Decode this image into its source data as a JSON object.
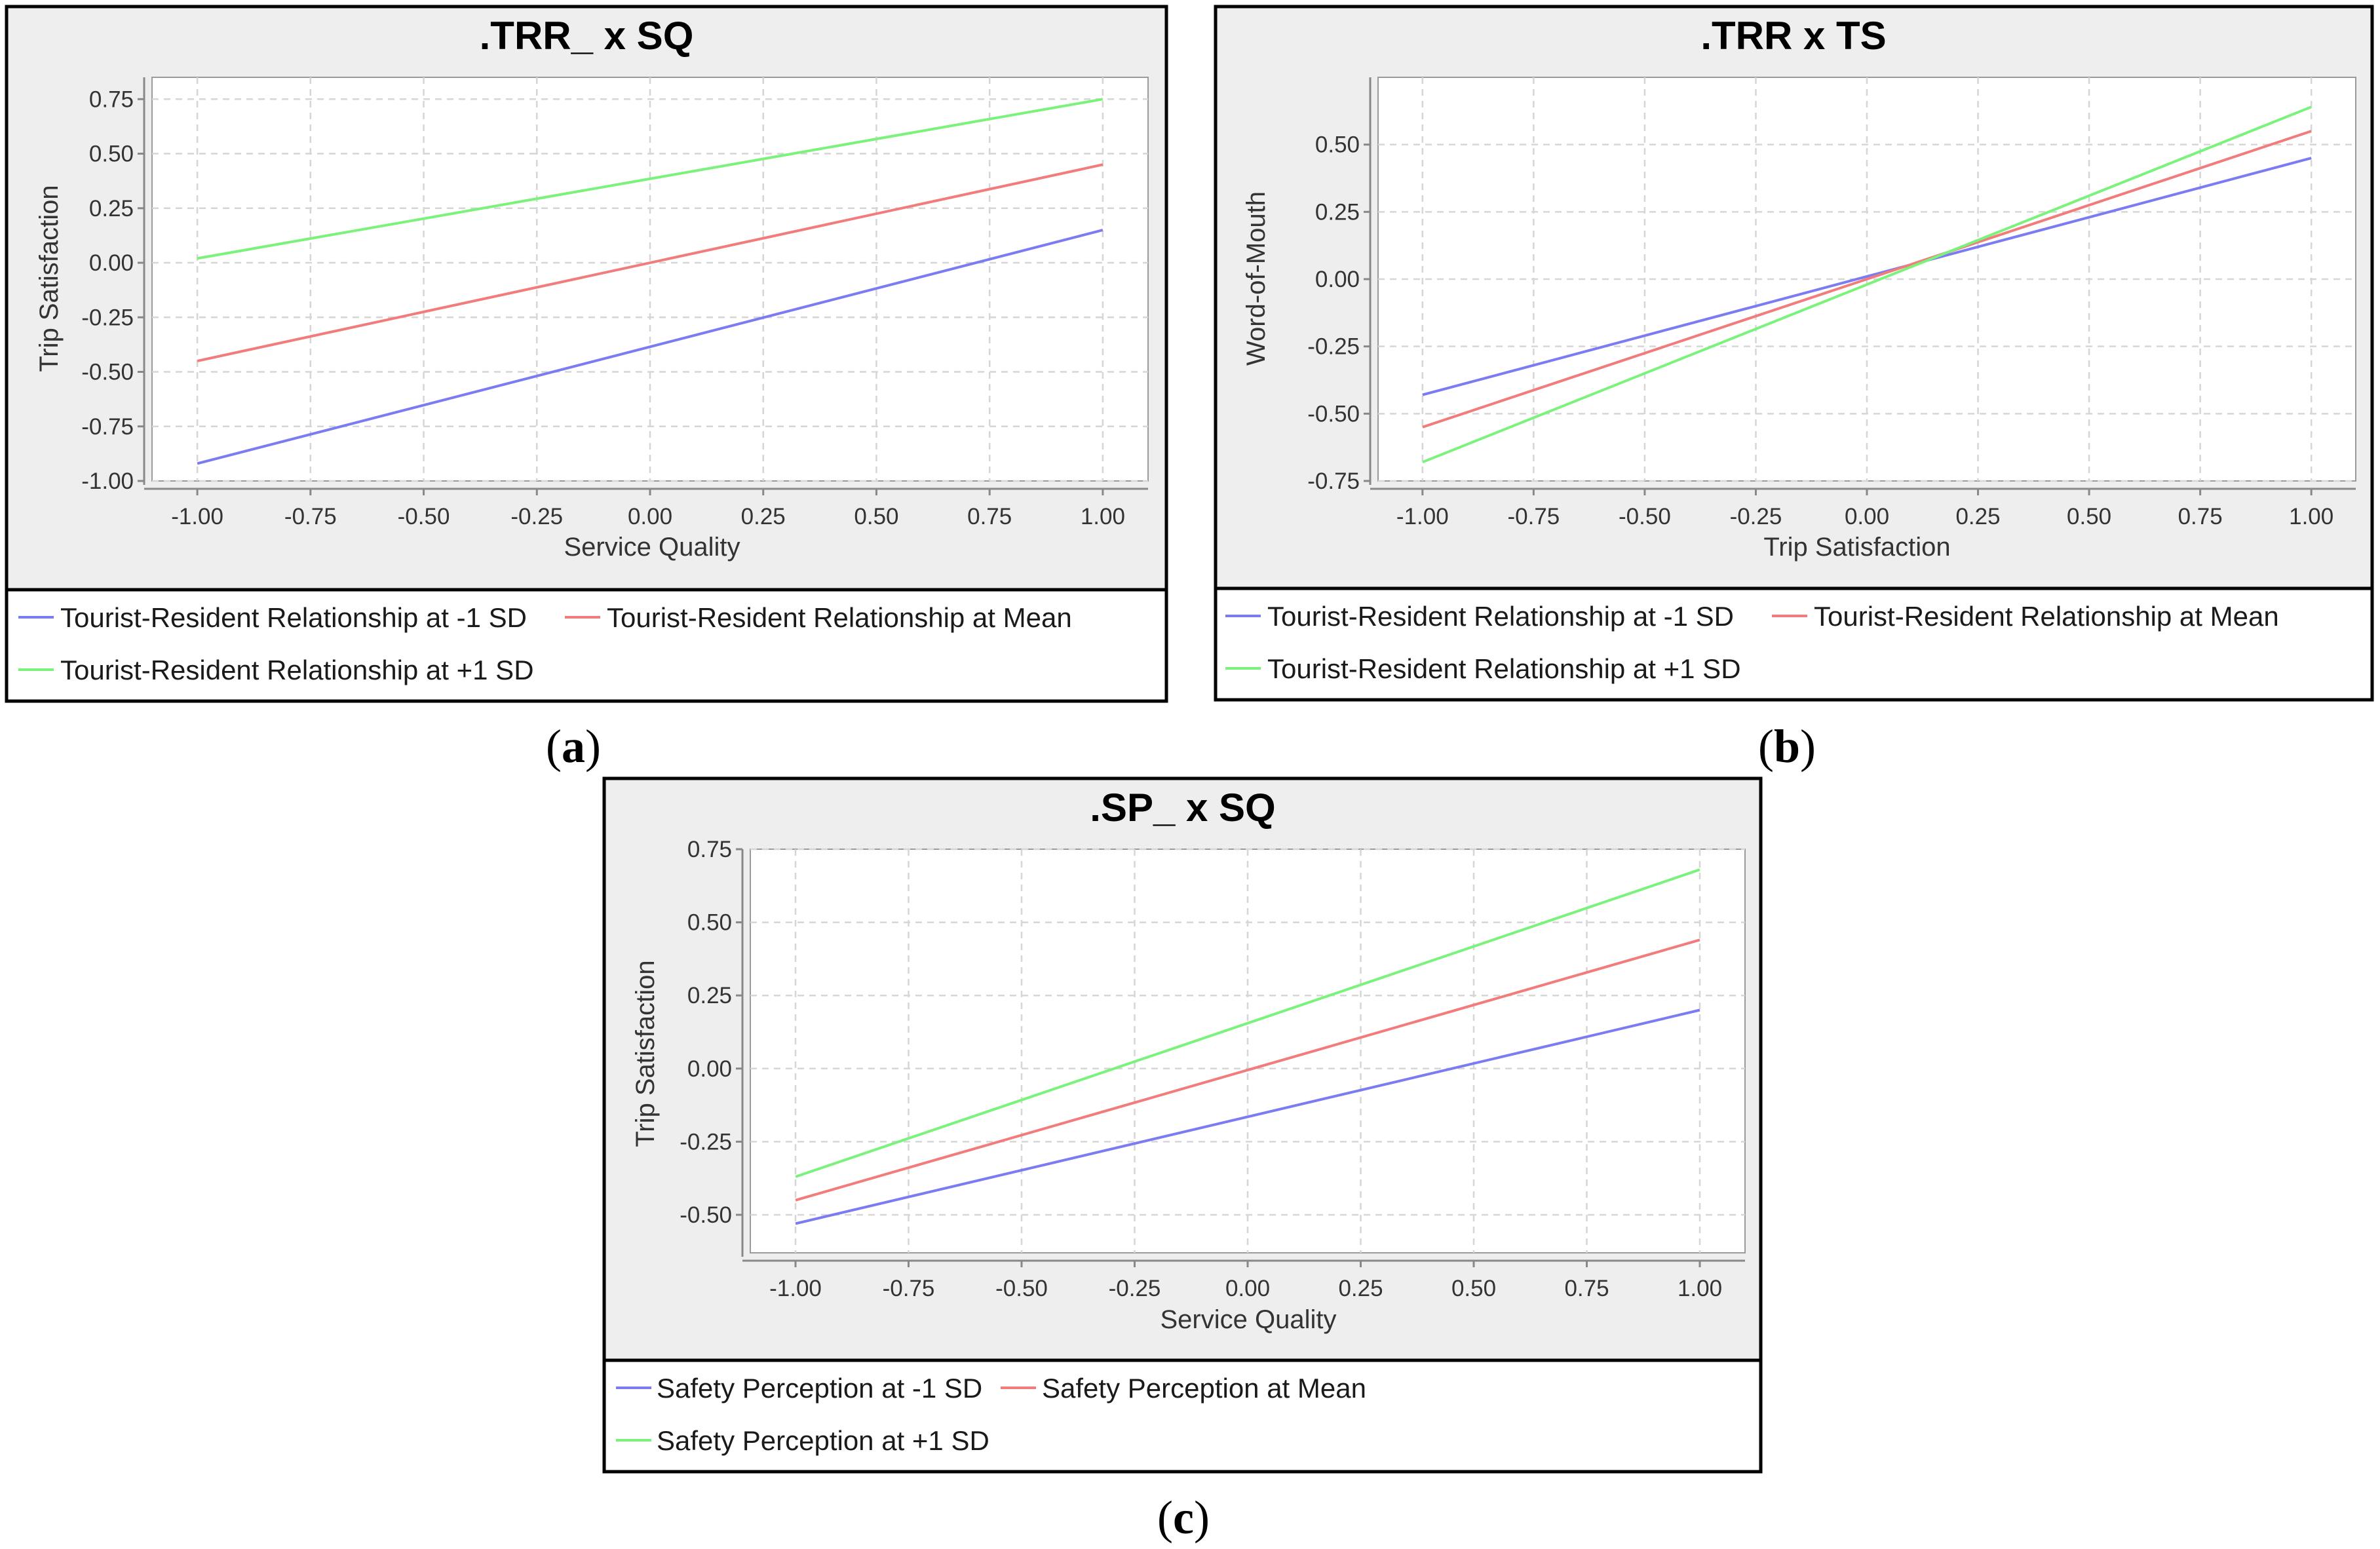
{
  "colors": {
    "minus_sd": "#7b7bf2",
    "mean": "#f27b7b",
    "plus_sd": "#7bf27b",
    "panel_bg": "#eeeeee",
    "plot_bg": "#ffffff"
  },
  "captions": [
    {
      "letter": "a"
    },
    {
      "letter": "b"
    },
    {
      "letter": "c"
    }
  ],
  "chart_data": [
    {
      "type": "line",
      "title": ".TRR_ x SQ",
      "xlabel": "Service Quality",
      "ylabel": "Trip Satisfaction",
      "xlim": [
        -1.1,
        1.1
      ],
      "ylim": [
        -1.0,
        0.85
      ],
      "x_ticks": [
        -1.0,
        -0.75,
        -0.5,
        -0.25,
        0.0,
        0.25,
        0.5,
        0.75,
        1.0
      ],
      "x_tick_labels": [
        "-1.00",
        "-0.75",
        "-0.50",
        "-0.25",
        "0.00",
        "0.25",
        "0.50",
        "0.75",
        "1.00"
      ],
      "y_ticks": [
        -1.0,
        -0.75,
        -0.5,
        -0.25,
        0.0,
        0.25,
        0.5,
        0.75
      ],
      "y_tick_labels": [
        "-1.00",
        "-0.75",
        "-0.50",
        "-0.25",
        "0.00",
        "0.25",
        "0.50",
        "0.75"
      ],
      "grid": true,
      "legend_position": "bottom",
      "series": [
        {
          "name": "Tourist-Resident Relationship at -1 SD",
          "x": [
            -1.0,
            1.0
          ],
          "y": [
            -0.92,
            0.15
          ],
          "color_key": "minus_sd"
        },
        {
          "name": "Tourist-Resident Relationship at Mean",
          "x": [
            -1.0,
            1.0
          ],
          "y": [
            -0.45,
            0.45
          ],
          "color_key": "mean"
        },
        {
          "name": "Tourist-Resident Relationship at +1 SD",
          "x": [
            -1.0,
            1.0
          ],
          "y": [
            0.02,
            0.75
          ],
          "color_key": "plus_sd"
        }
      ]
    },
    {
      "type": "line",
      "title": ".TRR x TS",
      "xlabel": "Trip Satisfaction",
      "ylabel": "Word-of-Mouth",
      "xlim": [
        -1.1,
        1.1
      ],
      "ylim": [
        -0.75,
        0.75
      ],
      "x_ticks": [
        -1.0,
        -0.75,
        -0.5,
        -0.25,
        0.0,
        0.25,
        0.5,
        0.75,
        1.0
      ],
      "x_tick_labels": [
        "-1.00",
        "-0.75",
        "-0.50",
        "-0.25",
        "0.00",
        "0.25",
        "0.50",
        "0.75",
        "1.00"
      ],
      "y_ticks": [
        -0.75,
        -0.5,
        -0.25,
        0.0,
        0.25,
        0.5
      ],
      "y_tick_labels": [
        "-0.75",
        "-0.50",
        "-0.25",
        "0.00",
        "0.25",
        "0.50"
      ],
      "grid": true,
      "legend_position": "bottom",
      "series": [
        {
          "name": "Tourist-Resident Relationship at -1 SD",
          "x": [
            -1.0,
            1.0
          ],
          "y": [
            -0.43,
            0.45
          ],
          "color_key": "minus_sd"
        },
        {
          "name": "Tourist-Resident Relationship at Mean",
          "x": [
            -1.0,
            1.0
          ],
          "y": [
            -0.55,
            0.55
          ],
          "color_key": "mean"
        },
        {
          "name": "Tourist-Resident Relationship at +1 SD",
          "x": [
            -1.0,
            1.0
          ],
          "y": [
            -0.68,
            0.64
          ],
          "color_key": "plus_sd"
        }
      ]
    },
    {
      "type": "line",
      "title": ".SP_ x SQ",
      "xlabel": "Service Quality",
      "ylabel": "Trip Satisfaction",
      "xlim": [
        -1.1,
        1.1
      ],
      "ylim": [
        -0.63,
        0.75
      ],
      "x_ticks": [
        -1.0,
        -0.75,
        -0.5,
        -0.25,
        0.0,
        0.25,
        0.5,
        0.75,
        1.0
      ],
      "x_tick_labels": [
        "-1.00",
        "-0.75",
        "-0.50",
        "-0.25",
        "0.00",
        "0.25",
        "0.50",
        "0.75",
        "1.00"
      ],
      "y_ticks": [
        -0.5,
        -0.25,
        0.0,
        0.25,
        0.5,
        0.75
      ],
      "y_tick_labels": [
        "-0.50",
        "-0.25",
        "0.00",
        "0.25",
        "0.50",
        "0.75"
      ],
      "grid": true,
      "legend_position": "bottom",
      "series": [
        {
          "name": "Safety Perception at -1 SD",
          "x": [
            -1.0,
            1.0
          ],
          "y": [
            -0.53,
            0.2
          ],
          "color_key": "minus_sd"
        },
        {
          "name": "Safety Perception at Mean",
          "x": [
            -1.0,
            1.0
          ],
          "y": [
            -0.45,
            0.44
          ],
          "color_key": "mean"
        },
        {
          "name": "Safety Perception at +1 SD",
          "x": [
            -1.0,
            1.0
          ],
          "y": [
            -0.37,
            0.68
          ],
          "color_key": "plus_sd"
        }
      ]
    }
  ]
}
